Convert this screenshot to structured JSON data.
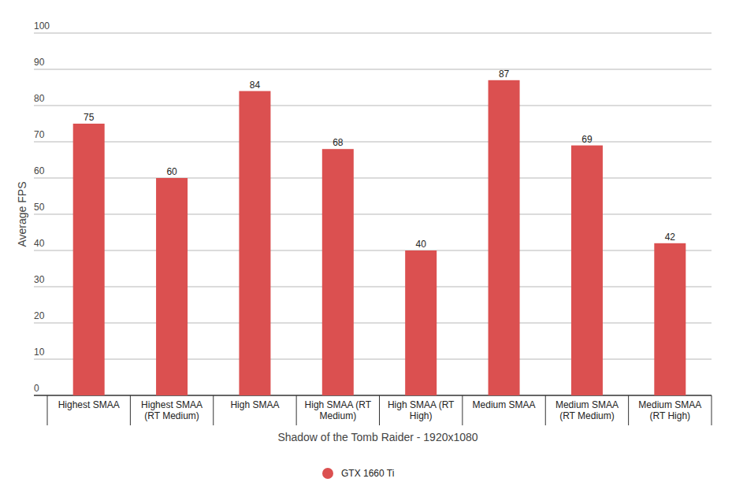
{
  "chart_data": {
    "type": "bar",
    "x_label": "Shadow of the Tomb Raider - 1920x1080",
    "y_label": "Average FPS",
    "categories": [
      "Highest SMAA",
      "Highest SMAA (RT Medium)",
      "High SMAA",
      "High SMAA (RT Medium)",
      "High SMAA (RT High)",
      "Medium SMAA",
      "Medium SMAA (RT Medium)",
      "Medium SMAA (RT High)"
    ],
    "series": [
      {
        "name": "GTX 1660 Ti",
        "color": "#db5050",
        "values": [
          75,
          60,
          84,
          68,
          40,
          87,
          69,
          42
        ]
      }
    ],
    "ylim": [
      0,
      100
    ],
    "yticks": [
      0,
      10,
      20,
      30,
      40,
      50,
      60,
      70,
      80,
      90,
      100
    ],
    "grid": true,
    "data_labels": true,
    "legend": "bottom"
  }
}
